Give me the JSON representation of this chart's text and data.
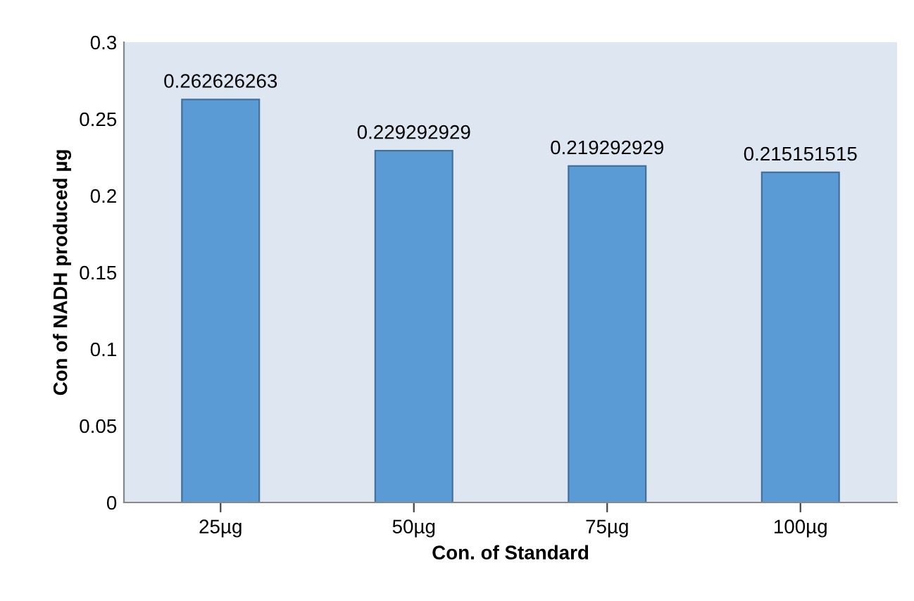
{
  "chart_data": {
    "type": "bar",
    "xlabel": "Con. of Standard",
    "ylabel": "Con of NADH produced µg",
    "categories": [
      "25µg",
      "50µg",
      "75µg",
      "100µg"
    ],
    "values": [
      0.262626263,
      0.229292929,
      0.219292929,
      0.215151515
    ],
    "color": "#5b9bd5",
    "ylim": [
      0,
      0.3
    ],
    "yticks": [
      0,
      0.05,
      0.1,
      0.15,
      0.2,
      0.25,
      0.3
    ],
    "data_labels": true,
    "grid": false,
    "legend": false
  }
}
